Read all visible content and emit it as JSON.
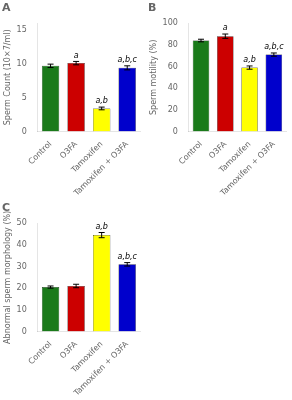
{
  "chart_data": [
    {
      "type": "bar",
      "title": "A",
      "categories": [
        "Control",
        "O3FA",
        "Tamoxifen",
        "Tamoxifen + O3FA"
      ],
      "values": [
        9.7,
        10.1,
        3.4,
        9.4
      ],
      "errors": [
        0.25,
        0.25,
        0.2,
        0.3
      ],
      "colors": [
        "#1a7a1a",
        "#cc0000",
        "#ffff00",
        "#0000cc"
      ],
      "y_label": "Sperm Count (10×7/ml)",
      "ylim": [
        0,
        16
      ],
      "yticks": [
        0,
        5,
        10,
        15
      ],
      "annotations": [
        null,
        "a",
        "a,b",
        "a,b,c"
      ],
      "grid": false
    },
    {
      "type": "bar",
      "title": "B",
      "categories": [
        "Control",
        "O3FA",
        "Tamoxifen",
        "Tamoxifen + O3FA"
      ],
      "values": [
        84,
        88,
        59,
        71
      ],
      "errors": [
        1.2,
        2.0,
        1.5,
        1.5
      ],
      "colors": [
        "#1a7a1a",
        "#cc0000",
        "#ffff00",
        "#0000cc"
      ],
      "y_label": "Sperm motility (%)",
      "ylim": [
        0,
        100
      ],
      "yticks": [
        0,
        20,
        40,
        60,
        80,
        100
      ],
      "annotations": [
        null,
        "a",
        "a,b",
        "a,b,c"
      ],
      "grid": false
    },
    {
      "type": "bar",
      "title": "C",
      "categories": [
        "Control",
        "O3FA",
        "Tamoxifen",
        "Tamoxifen + O3FA"
      ],
      "values": [
        20.5,
        21.0,
        44.5,
        31.0
      ],
      "errors": [
        0.5,
        0.8,
        1.2,
        0.8
      ],
      "colors": [
        "#1a7a1a",
        "#cc0000",
        "#ffff00",
        "#0000cc"
      ],
      "y_label": "Abnormal sperm morphology (%)",
      "ylim": [
        0,
        50
      ],
      "yticks": [
        0,
        10,
        20,
        30,
        40,
        50
      ],
      "annotations": [
        null,
        null,
        "a,b",
        "a,b,c"
      ],
      "grid": false
    }
  ]
}
